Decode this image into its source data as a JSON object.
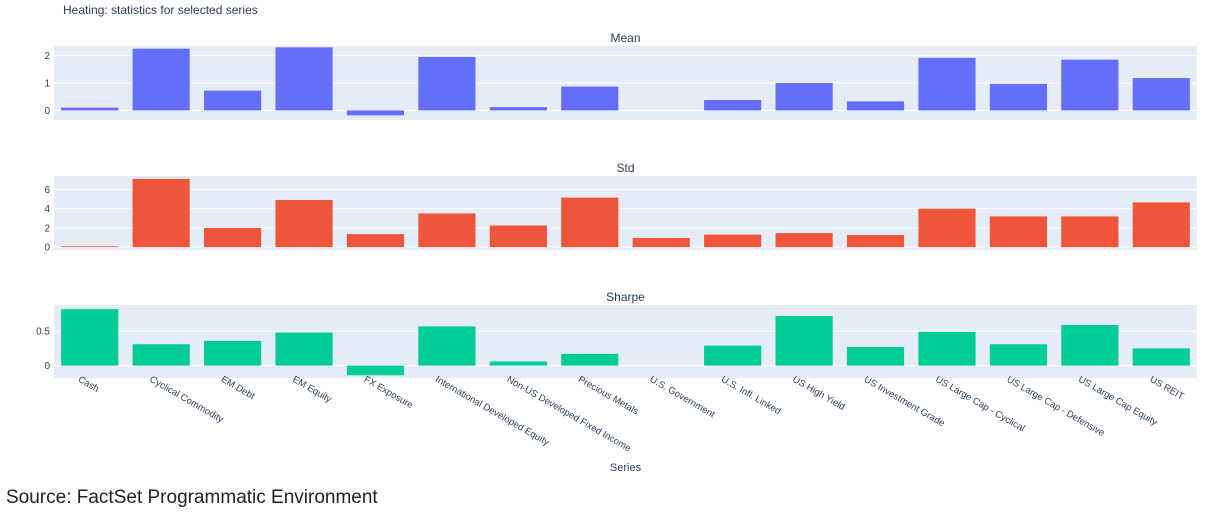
{
  "source_note": "Source: FactSet Programmatic Environment",
  "chart_data": {
    "type": "bar",
    "title": "Heating: statistics for selected series",
    "xlabel": "Series",
    "categories": [
      "Cash",
      "Cyclical Commodity",
      "EM Debt",
      "EM Equity",
      "FX Exposure",
      "International Developed Equity",
      "Non-US Developed Fixed Income",
      "Precious Metals",
      "U.S. Government",
      "U.S. Infl. Linked",
      "US High Yield",
      "US Investment Grade",
      "US Large Cap - Cyclical",
      "US Large Cap - Defensive",
      "US Large Cap Equity",
      "US REIT"
    ],
    "grid": true,
    "panels": [
      {
        "title": "Mean",
        "color": "#636efa",
        "ylim": [
          -0.35,
          2.35
        ],
        "yticks": [
          0,
          1,
          2
        ],
        "values": [
          0.1,
          2.25,
          0.72,
          2.3,
          -0.18,
          1.95,
          0.12,
          0.87,
          0.0,
          0.38,
          1.0,
          0.33,
          1.92,
          0.97,
          1.85,
          1.18
        ]
      },
      {
        "title": "Std",
        "color": "#ef553b",
        "ylim": [
          -0.3,
          7.4
        ],
        "yticks": [
          0,
          2,
          4,
          6
        ],
        "values": [
          0.08,
          7.1,
          2.0,
          4.9,
          1.35,
          3.5,
          2.25,
          5.15,
          0.95,
          1.3,
          1.45,
          1.25,
          4.0,
          3.2,
          3.2,
          4.65
        ]
      },
      {
        "title": "Sharpe",
        "color": "#00cc96",
        "ylim": [
          -0.18,
          0.88
        ],
        "yticks": [
          0,
          0.5
        ],
        "values": [
          0.82,
          0.31,
          0.36,
          0.48,
          -0.14,
          0.57,
          0.06,
          0.17,
          0.0,
          0.29,
          0.72,
          0.27,
          0.49,
          0.31,
          0.59,
          0.25
        ]
      }
    ]
  }
}
